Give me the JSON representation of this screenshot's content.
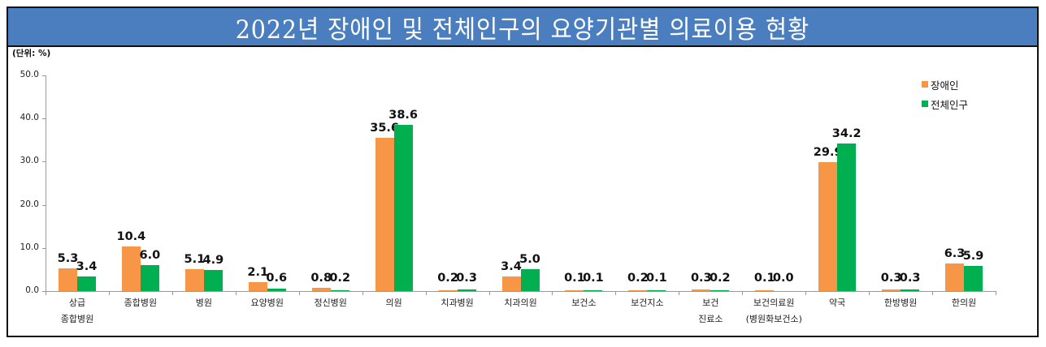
{
  "title": "2022년 장애인 및 전체인구의 요양기관별 의료이용 현황",
  "unit_label": "(단위: %)",
  "legend": [
    {
      "label": "장애인",
      "color": "#F79646"
    },
    {
      "label": "전체인구",
      "color": "#00B050"
    }
  ],
  "yaxis": {
    "ticks": [
      "50.0",
      "40.0",
      "30.0",
      "20.0",
      "10.0",
      "0.0"
    ]
  },
  "chart_data": {
    "type": "bar",
    "title": "2022년 장애인 및 전체인구의 요양기관별 의료이용 현황",
    "xlabel": "",
    "ylabel": "(단위: %)",
    "ylim": [
      0,
      50
    ],
    "yticks": [
      0,
      10,
      20,
      30,
      40,
      50
    ],
    "grid": false,
    "legend_position": "upper right",
    "categories": [
      "상급 종합병원",
      "종합병원",
      "병원",
      "요양병원",
      "정신병원",
      "의원",
      "치과병원",
      "치과의원",
      "보건소",
      "보건지소",
      "보건 진료소",
      "보건의료원 (병원화보건소)",
      "약국",
      "한방병원",
      "한의원"
    ],
    "category_lines": [
      [
        "상급",
        "종합병원"
      ],
      [
        "종합병원"
      ],
      [
        "병원"
      ],
      [
        "요양병원"
      ],
      [
        "정신병원"
      ],
      [
        "의원"
      ],
      [
        "치과병원"
      ],
      [
        "치과의원"
      ],
      [
        "보건소"
      ],
      [
        "보건지소"
      ],
      [
        "보건",
        "진료소"
      ],
      [
        "보건의료원",
        "(병원화보건소)"
      ],
      [
        "약국"
      ],
      [
        "한방병원"
      ],
      [
        "한의원"
      ]
    ],
    "series": [
      {
        "name": "장애인",
        "color": "#F79646",
        "values": [
          5.3,
          10.4,
          5.1,
          2.1,
          0.8,
          35.6,
          0.2,
          3.4,
          0.1,
          0.2,
          0.3,
          0.1,
          29.9,
          0.3,
          6.3
        ],
        "labels": [
          "5.3",
          "10.4",
          "5.1",
          "2.1",
          "0.8",
          "35.6",
          "0.2",
          "3.4",
          "0.1",
          "0.2",
          "0.3",
          "0.1",
          "29.9",
          "0.3",
          "6.3"
        ]
      },
      {
        "name": "전체인구",
        "color": "#00B050",
        "values": [
          3.4,
          6.0,
          4.9,
          0.6,
          0.2,
          38.6,
          0.3,
          5.0,
          0.1,
          0.1,
          0.2,
          0.0,
          34.2,
          0.3,
          5.9
        ],
        "labels": [
          "3.4",
          "6.0",
          "4.9",
          "0.6",
          "0.2",
          "38.6",
          "0.3",
          "5.0",
          "0.1",
          "0.1",
          "0.2",
          "0.0",
          "34.2",
          "0.3",
          "5.9"
        ]
      }
    ]
  }
}
